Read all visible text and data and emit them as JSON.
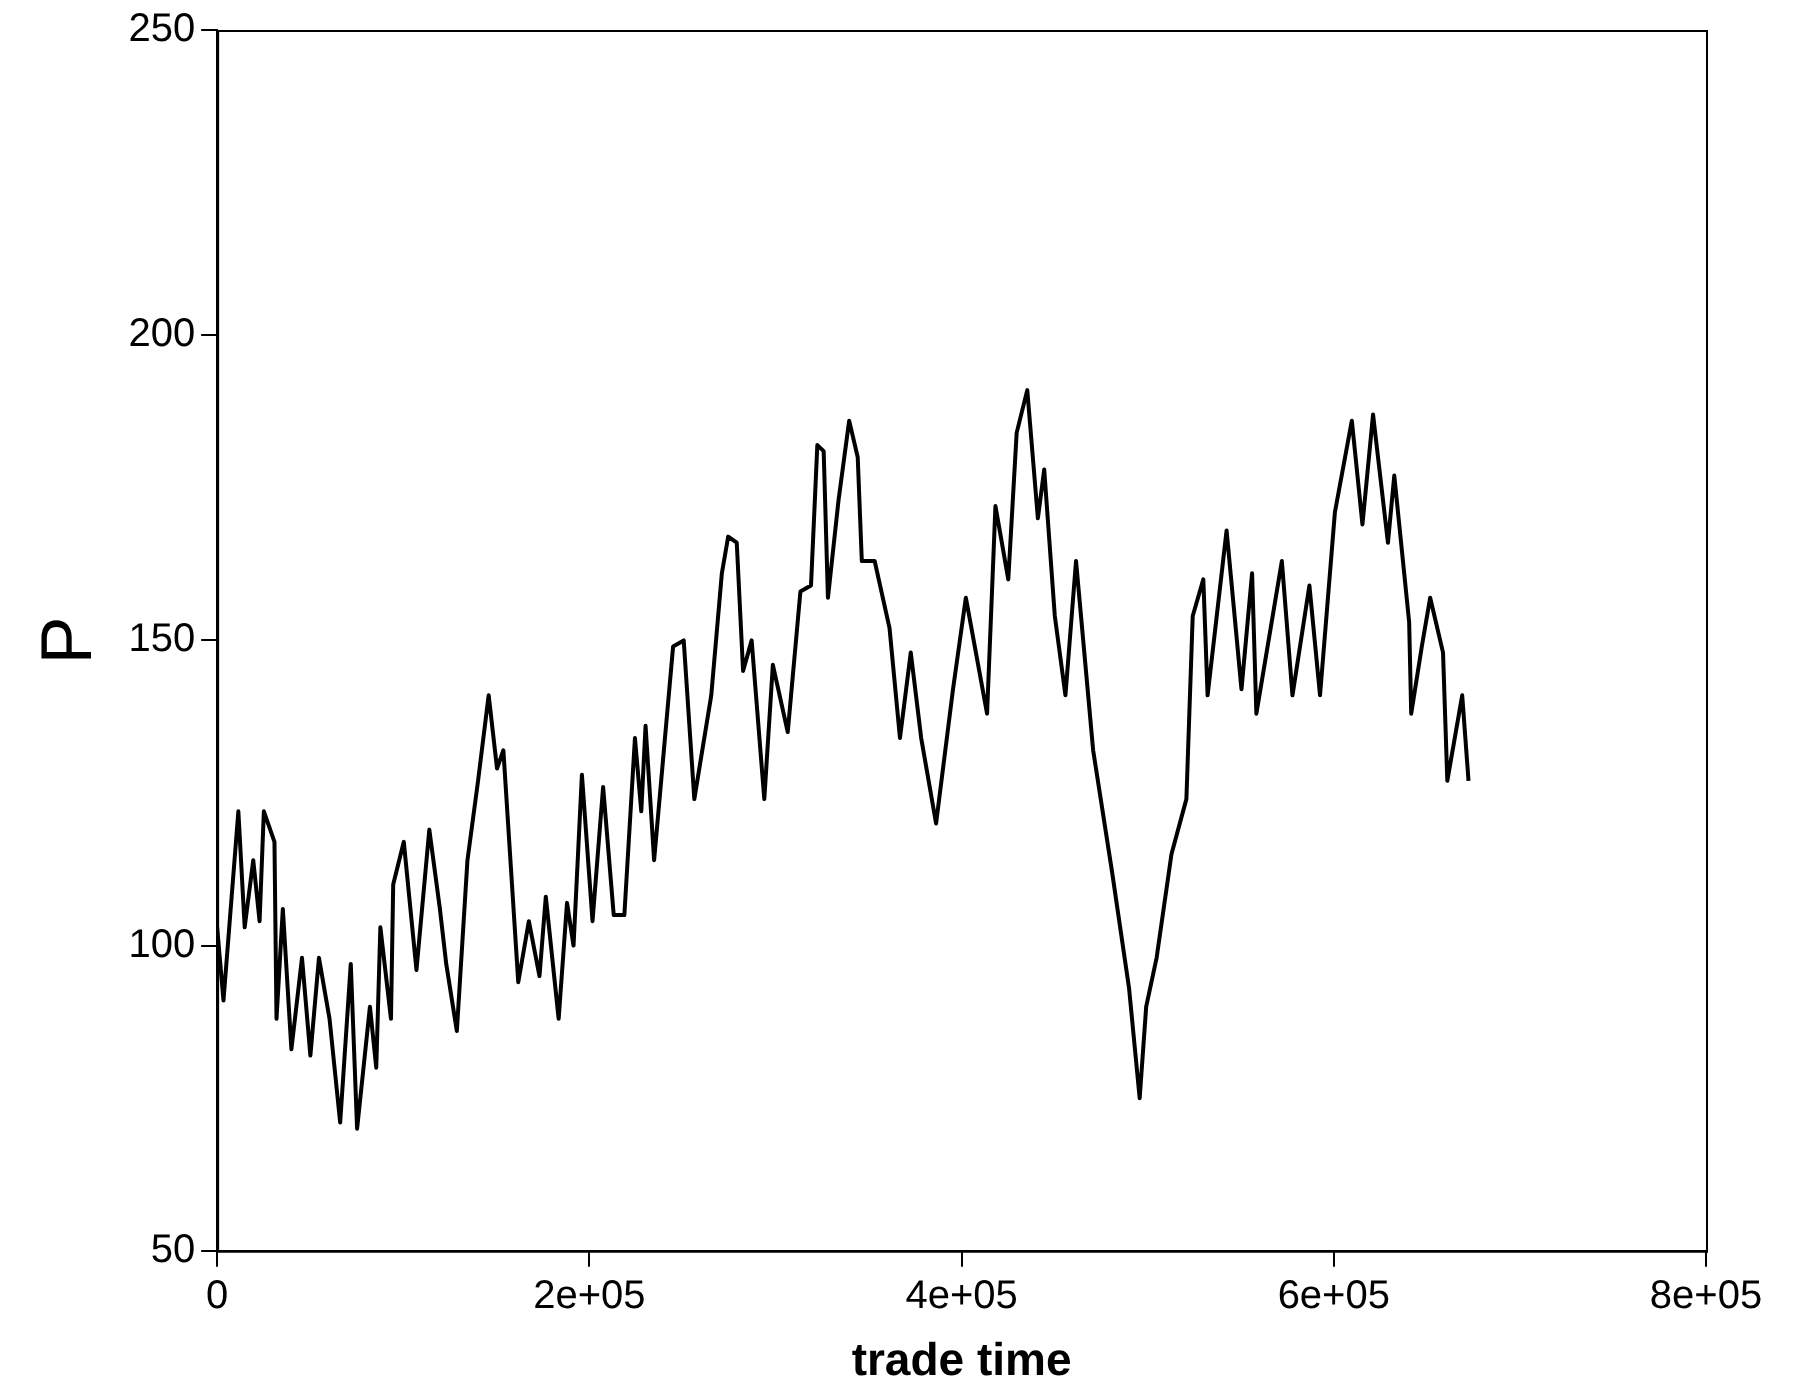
{
  "chart_data": {
    "type": "line",
    "xlabel": "trade time",
    "ylabel": "P",
    "xlim": [
      0,
      800000
    ],
    "ylim": [
      50,
      250
    ],
    "xticks": [
      0,
      {
        "value": 200000,
        "label": "2e+05"
      },
      {
        "value": 400000,
        "label": "4e+05"
      },
      {
        "value": 600000,
        "label": "6e+05"
      },
      {
        "value": 800000,
        "label": "8e+05"
      }
    ],
    "yticks": [
      50,
      100,
      150,
      200,
      250
    ],
    "grid": false,
    "legend": false,
    "marker": "none",
    "line_style": "solid",
    "series": [
      {
        "color": "#000000",
        "x": [
          0,
          3400,
          11400,
          14800,
          19400,
          22800,
          25100,
          30800,
          31900,
          35300,
          39900,
          45600,
          50100,
          54700,
          60400,
          66100,
          71800,
          75200,
          82100,
          85500,
          87700,
          93400,
          94600,
          100300,
          107100,
          114000,
          119700,
          123100,
          128800,
          134500,
          140200,
          145900,
          150400,
          153800,
          161800,
          167500,
          173200,
          176600,
          183500,
          188000,
          191500,
          196000,
          201700,
          207400,
          213100,
          218800,
          224500,
          227900,
          230200,
          234800,
          245000,
          250700,
          256400,
          265500,
          271200,
          274600,
          279200,
          282600,
          287200,
          294000,
          298600,
          306600,
          313400,
          319100,
          322500,
          325900,
          328200,
          333900,
          339600,
          344200,
          346400,
          353300,
          361300,
          366900,
          372700,
          378300,
          386300,
          395400,
          402300,
          413700,
          418200,
          425100,
          429600,
          435300,
          441000,
          444400,
          450100,
          455800,
          461500,
          470700,
          480900,
          490000,
          495700,
          499200,
          504800,
          512800,
          520800,
          524200,
          529900,
          532200,
          542400,
          550400,
          556100,
          558400,
          572100,
          577800,
          586900,
          592600,
          600600,
          609700,
          615400,
          621100,
          629100,
          632500,
          640500,
          641600,
          647300,
          651800,
          658700,
          661000,
          669000,
          672400
        ],
        "values": [
          103,
          91,
          122,
          103,
          114,
          104,
          122,
          117,
          88,
          106,
          83,
          98,
          82,
          98,
          88,
          71,
          97,
          70,
          90,
          80,
          103,
          88,
          110,
          117,
          96,
          119,
          106,
          97,
          86,
          114,
          127,
          141,
          129,
          132,
          94,
          104,
          95,
          108,
          88,
          107,
          100,
          128,
          104,
          126,
          105,
          105,
          134,
          122,
          136,
          114,
          149,
          150,
          124,
          141,
          161,
          167,
          166,
          145,
          150,
          124,
          146,
          135,
          158,
          159,
          182,
          181,
          157,
          173,
          186,
          180,
          163,
          163,
          152,
          134,
          148,
          134,
          120,
          142,
          157,
          138,
          172,
          160,
          184,
          191,
          170,
          178,
          154,
          141,
          163,
          132,
          112,
          93,
          75,
          90,
          98,
          115,
          124,
          154,
          160,
          141,
          168,
          142,
          161,
          138,
          163,
          141,
          159,
          141,
          171,
          186,
          169,
          187,
          166,
          177,
          153,
          138,
          149,
          157,
          148,
          127,
          141,
          127
        ]
      }
    ]
  }
}
